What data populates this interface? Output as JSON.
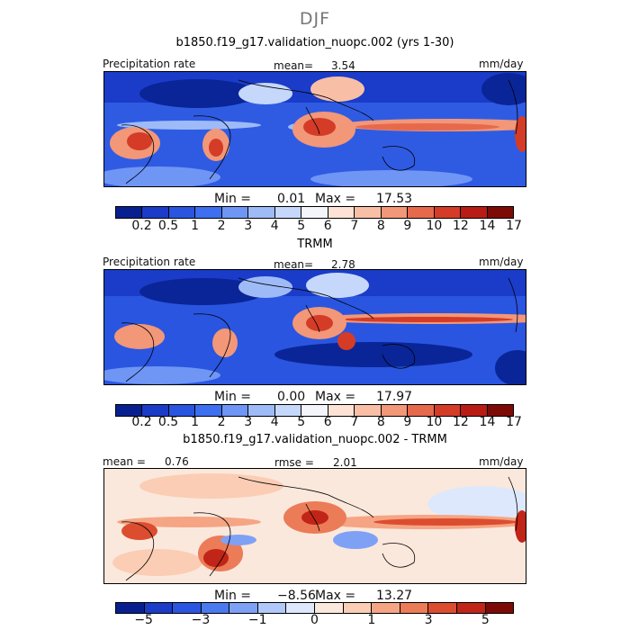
{
  "figure": {
    "season": "DJF",
    "panel1_title": "b1850.f19_g17.validation_nuopc.002 (yrs 1-30)",
    "panel2_title": "TRMM",
    "panel3_title": "b1850.f19_g17.validation_nuopc.002 - TRMM"
  },
  "panel1": {
    "variable": "Precipitation rate",
    "mean_label": "mean=",
    "mean_value": "3.54",
    "units": "mm/day",
    "min_label": "Min =",
    "min_value": "0.01",
    "max_label": "Max =",
    "max_value": "17.53"
  },
  "panel2": {
    "variable": "Precipitation rate",
    "mean_label": "mean=",
    "mean_value": "2.78",
    "units": "mm/day",
    "min_label": "Min =",
    "min_value": "0.00",
    "max_label": "Max =",
    "max_value": "17.97"
  },
  "panel3": {
    "mean_label": "mean =",
    "mean_value": "0.76",
    "rmse_label": "rmse =",
    "rmse_value": "2.01",
    "units": "mm/day",
    "min_label": "Min =",
    "min_value": "−8.56",
    "max_label": "Max =",
    "max_value": "13.27"
  },
  "colorbar_abs": {
    "colors": [
      "#08208f",
      "#1a3cc8",
      "#2a55e0",
      "#3d6ff0",
      "#6f96f5",
      "#9ebbf8",
      "#c5d8fb",
      "#f3f5fb",
      "#fde3d5",
      "#f8bfa6",
      "#f29778",
      "#e7694c",
      "#d43c27",
      "#b81c14",
      "#7e0a06"
    ],
    "labels": [
      "0.2",
      "0.5",
      "1",
      "2",
      "3",
      "4",
      "5",
      "6",
      "7",
      "8",
      "9",
      "10",
      "12",
      "14",
      "17"
    ]
  },
  "colorbar_diff": {
    "colors": [
      "#08208f",
      "#1a3cc8",
      "#2a55e0",
      "#4a7aef",
      "#7ea1f6",
      "#b0c8fa",
      "#dde8fc",
      "#fbe8dc",
      "#fbcdb4",
      "#f5a584",
      "#ec7b57",
      "#dc4d2f",
      "#c02517",
      "#7e0a06"
    ],
    "labels": [
      "−5",
      "−3",
      "−1",
      "0",
      "1",
      "3",
      "5"
    ]
  }
}
